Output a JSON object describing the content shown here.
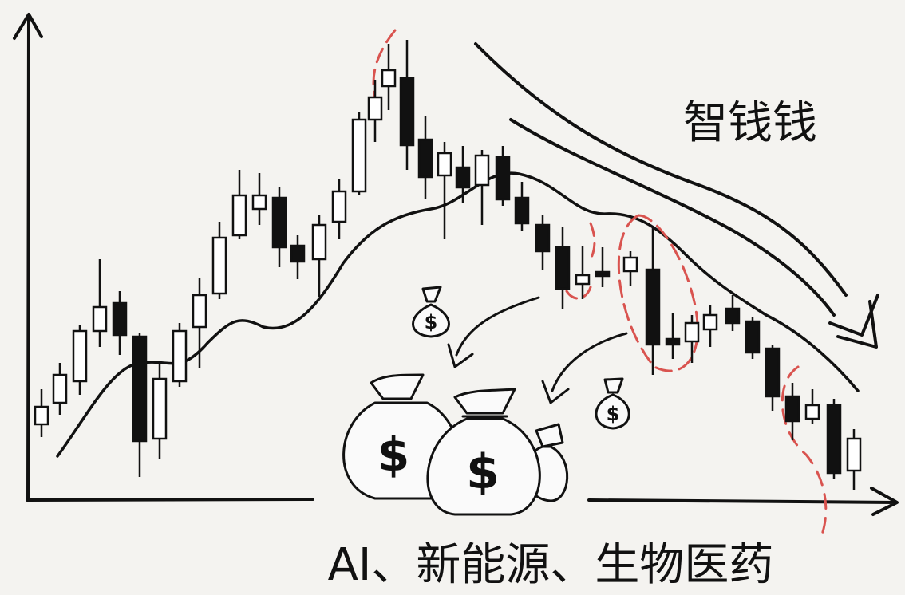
{
  "labels": {
    "smart_money": "智钱钱",
    "sectors": "AI、新能源、生物医药"
  }
}
